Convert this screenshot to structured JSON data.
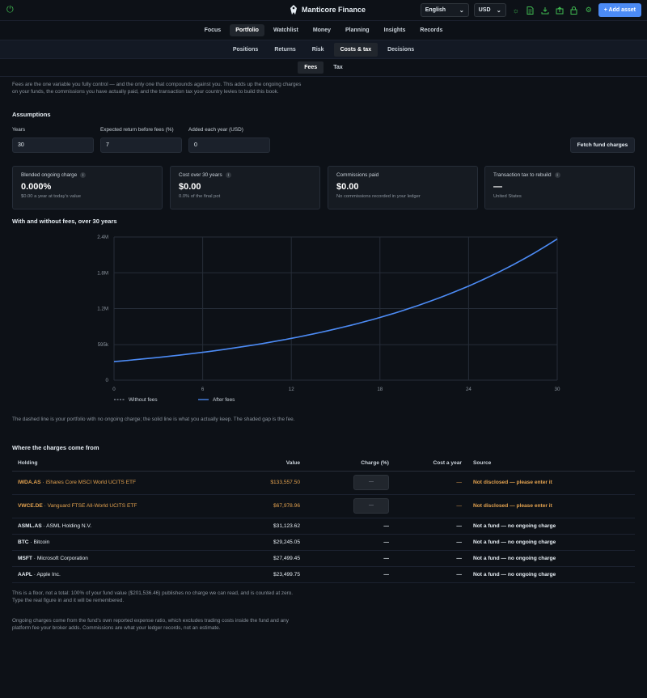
{
  "app": {
    "name": "Manticore Finance"
  },
  "header": {
    "language": "English",
    "currency": "USD",
    "add_asset": "+ Add asset",
    "icons": [
      "power-icon",
      "sun-icon",
      "document-icon",
      "download-icon",
      "upload-icon",
      "lock-icon",
      "gear-icon"
    ]
  },
  "nav_main": [
    "Focus",
    "Portfolio",
    "Watchlist",
    "Money",
    "Planning",
    "Insights",
    "Records"
  ],
  "nav_main_active": "Portfolio",
  "nav_sub": [
    "Positions",
    "Returns",
    "Risk",
    "Costs & tax",
    "Decisions"
  ],
  "nav_sub_active": "Costs & tax",
  "nav_tabs": [
    "Fees",
    "Tax"
  ],
  "nav_tabs_active": "Fees",
  "intro": "Fees are the one variable you fully control — and the only one that compounds against you. This adds up the ongoing charges on your funds, the commissions you have actually paid, and the transaction tax your country levies to build this book.",
  "assumptions": {
    "title": "Assumptions",
    "years_label": "Years",
    "years_value": "30",
    "return_label": "Expected return before fees (%)",
    "return_value": "7",
    "added_label": "Added each year (USD)",
    "added_value": "0",
    "fetch_button": "Fetch fund charges"
  },
  "cards": [
    {
      "title": "Blended ongoing charge",
      "value": "0.000%",
      "sub": "$0.00 a year at today's value",
      "info": true
    },
    {
      "title": "Cost over 30 years",
      "value": "$0.00",
      "sub": "0.0% of the final pot",
      "info": true
    },
    {
      "title": "Commissions paid",
      "value": "$0.00",
      "sub": "No commissions recorded in your ledger",
      "info": false
    },
    {
      "title": "Transaction tax to rebuild",
      "value": "—",
      "sub": "United States",
      "info": true
    }
  ],
  "chart_title": "With and without fees, over 30 years",
  "chart_data": {
    "type": "line",
    "x_ticks": [
      0,
      6,
      12,
      18,
      24,
      30
    ],
    "y_ticks": [
      "0",
      "595k",
      "1.2M",
      "1.8M",
      "2.4M"
    ],
    "y_tick_values": [
      0,
      595000,
      1200000,
      1800000,
      2400000
    ],
    "ylim": [
      0,
      2400000
    ],
    "xlim": [
      0,
      30
    ],
    "series": [
      {
        "name": "Without fees",
        "style": "dashed",
        "color": "#8b949e",
        "x": [
          0,
          30
        ],
        "y": [
          311000,
          2378000
        ]
      },
      {
        "name": "After fees",
        "style": "solid",
        "color": "#4c8bf5",
        "x": [
          0,
          30
        ],
        "y": [
          311000,
          2378000
        ]
      }
    ],
    "growth_rate": 0.07,
    "grid": true,
    "legend": "bottom-left"
  },
  "chart_note": "The dashed line is your portfolio with no ongoing charge; the solid line is what you actually keep. The shaded gap is the fee.",
  "charges": {
    "title": "Where the charges come from",
    "columns": [
      "Holding",
      "Value",
      "Charge (%)",
      "Cost a year",
      "Source"
    ],
    "rows": [
      {
        "ticker": "IWDA.AS",
        "name": "iShares Core MSCI World UCITS ETF",
        "value": "$133,557.50",
        "charge": "—",
        "cost": "—",
        "source": "Not disclosed — please enter it",
        "fund": true
      },
      {
        "ticker": "VWCE.DE",
        "name": "Vanguard FTSE All-World UCITS ETF",
        "value": "$67,978.96",
        "charge": "—",
        "cost": "—",
        "source": "Not disclosed — please enter it",
        "fund": true
      },
      {
        "ticker": "ASML.AS",
        "name": "ASML Holding N.V.",
        "value": "$31,123.62",
        "charge": "—",
        "cost": "—",
        "source": "Not a fund — no ongoing charge",
        "fund": false
      },
      {
        "ticker": "BTC",
        "name": "Bitcoin",
        "value": "$29,245.05",
        "charge": "—",
        "cost": "—",
        "source": "Not a fund — no ongoing charge",
        "fund": false
      },
      {
        "ticker": "MSFT",
        "name": "Microsoft Corporation",
        "value": "$27,499.45",
        "charge": "—",
        "cost": "—",
        "source": "Not a fund — no ongoing charge",
        "fund": false
      },
      {
        "ticker": "AAPL",
        "name": "Apple Inc.",
        "value": "$23,499.75",
        "charge": "—",
        "cost": "—",
        "source": "Not a fund — no ongoing charge",
        "fund": false
      }
    ]
  },
  "footnote1": "This is a floor, not a total: 100% of your fund value ($201,536.46) publishes no charge we can read, and is counted at zero. Type the real figure in and it will be remembered.",
  "footnote2": "Ongoing charges come from the fund's own reported expense ratio, which excludes trading costs inside the fund and any platform fee your broker adds. Commissions are what your ledger records, not an estimate."
}
